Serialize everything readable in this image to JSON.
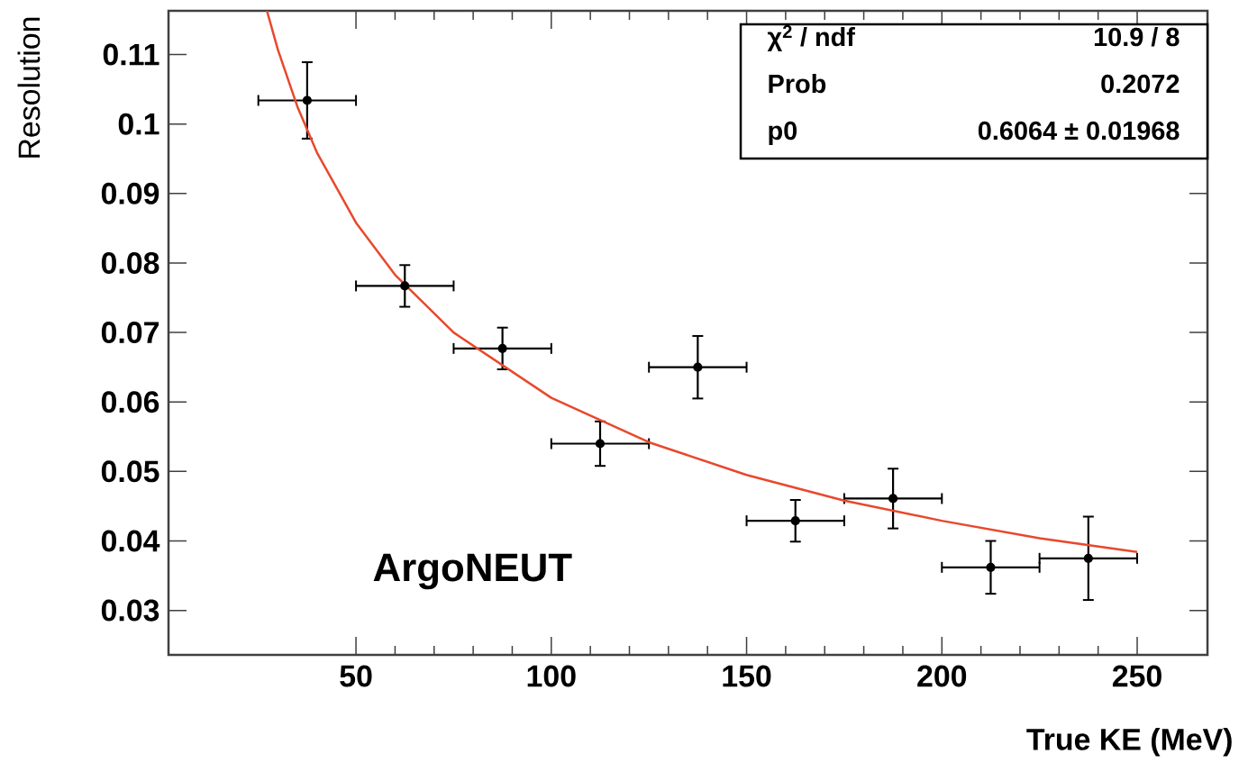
{
  "chart_data": {
    "type": "scatter",
    "xlabel": "True KE (MeV)",
    "ylabel": "Resolution",
    "xlim": [
      2,
      268
    ],
    "ylim": [
      0.0236,
      0.1163
    ],
    "xticks": [
      50,
      100,
      150,
      200,
      250
    ],
    "yticks": [
      0.03,
      0.04,
      0.05,
      0.06,
      0.07,
      0.08,
      0.09,
      0.1,
      0.11
    ],
    "grid": false,
    "marker": "circle",
    "series": [
      {
        "type": "scatter",
        "color": "#000000",
        "x": [
          37.5,
          62.5,
          87.5,
          112.5,
          137.5,
          162.5,
          187.5,
          212.5,
          237.5
        ],
        "values": [
          0.1034,
          0.0767,
          0.0677,
          0.054,
          0.065,
          0.0429,
          0.0461,
          0.0362,
          0.0375
        ],
        "errors": [
          0.0055,
          0.003,
          0.003,
          0.0032,
          0.0045,
          0.003,
          0.0043,
          0.0038,
          0.006
        ],
        "xerrors": [
          12.5,
          12.5,
          12.5,
          12.5,
          12.5,
          12.5,
          12.5,
          12.5,
          12.5
        ]
      },
      {
        "type": "line",
        "color": "#e8482c",
        "marker": "none",
        "x": [
          27.2,
          30,
          35,
          40,
          50,
          60,
          75,
          100,
          125,
          150,
          175,
          200,
          225,
          250
        ],
        "values": [
          0.1163,
          0.1107,
          0.1025,
          0.0959,
          0.0858,
          0.0783,
          0.07,
          0.0606,
          0.0542,
          0.0495,
          0.0458,
          0.0429,
          0.0404,
          0.0384
        ]
      }
    ],
    "annotations": [
      "χ$^{2}$ / ndf",
      "10.9 / 8",
      "Prob",
      "0.2072",
      "p0",
      "0.6064 ± 0.01968",
      "ArgoNEUT"
    ]
  }
}
